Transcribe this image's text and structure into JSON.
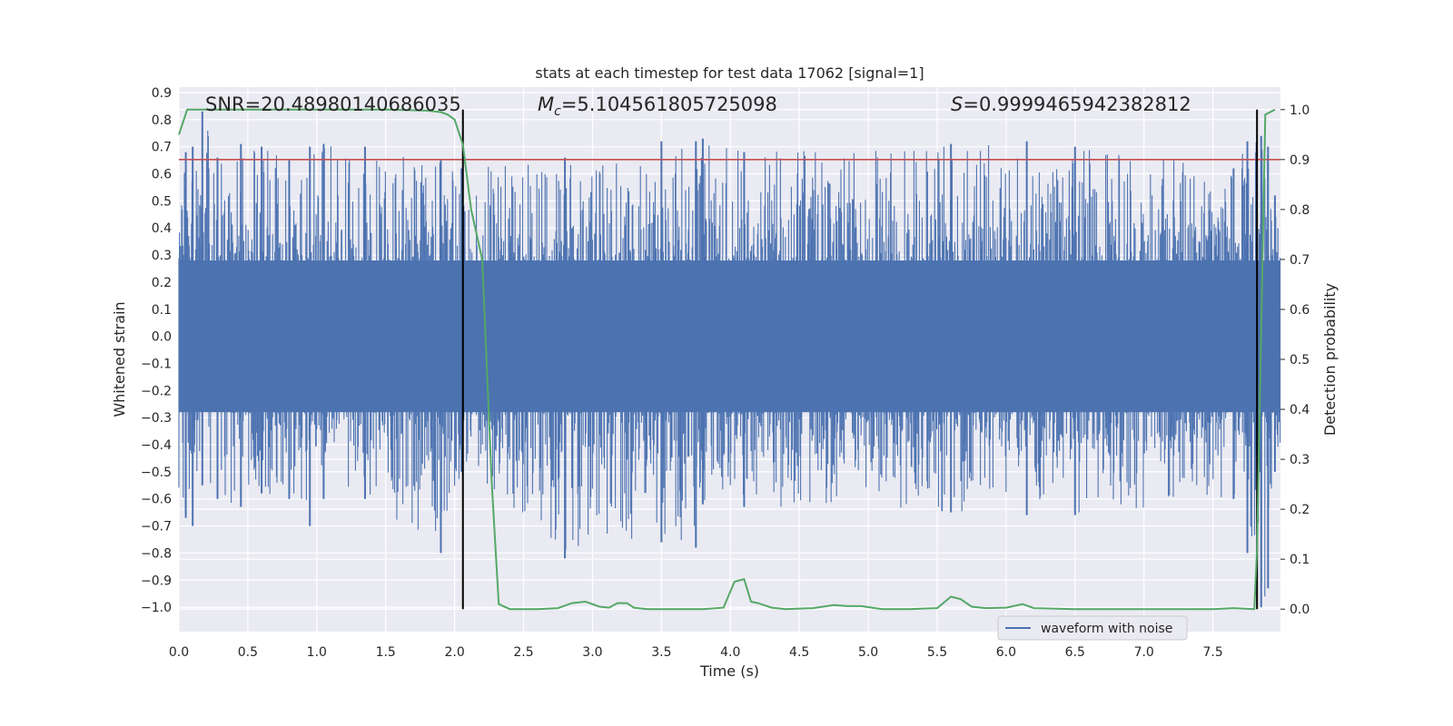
{
  "chart_data": {
    "type": "line",
    "title": "stats at each timestep for test data 17062 [signal=1]",
    "xlabel": "Time (s)",
    "ylabel": "Whitened strain",
    "y2label": "Detection probability",
    "xlim": [
      0.0,
      7.99
    ],
    "ylim": [
      -1.09,
      0.92
    ],
    "y2lim": [
      -0.045,
      1.045
    ],
    "xticks": [
      "0.0",
      "0.5",
      "1.0",
      "1.5",
      "2.0",
      "2.5",
      "3.0",
      "3.5",
      "4.0",
      "4.5",
      "5.0",
      "5.5",
      "6.0",
      "6.5",
      "7.0",
      "7.5"
    ],
    "yticks": [
      "0.9",
      "0.8",
      "0.7",
      "0.6",
      "0.5",
      "0.4",
      "0.3",
      "0.2",
      "0.1",
      "0.0",
      "−0.1",
      "−0.2",
      "−0.3",
      "−0.4",
      "−0.5",
      "−0.6",
      "−0.7",
      "−0.8",
      "−0.9",
      "−1.0"
    ],
    "y2ticks": [
      "1.0",
      "0.9",
      "0.8",
      "0.7",
      "0.6",
      "0.5",
      "0.4",
      "0.3",
      "0.2",
      "0.1",
      "0.0"
    ],
    "annotations": {
      "snr": "SNR=20.48980140686035",
      "mc_symbol": "M",
      "mc_sub": "c",
      "mc_value": "=5.104561805725098",
      "s_symbol": "S",
      "s_value": "=0.9999465942382812"
    },
    "threshold": 0.9,
    "vlines_x": [
      2.06,
      7.82
    ],
    "legend": [
      {
        "label": "waveform with noise",
        "color": "#4c72b0"
      }
    ],
    "legend_position": "lower-right",
    "series": [
      {
        "name": "waveform with noise",
        "color": "#4c72b0",
        "kind": "noise-envelope",
        "core_band": [
          -0.28,
          0.28
        ],
        "envelope_keypoints": {
          "x": [
            0.05,
            0.1,
            0.17,
            0.28,
            0.45,
            0.6,
            0.8,
            0.95,
            1.05,
            1.35,
            1.9,
            2.05,
            2.8,
            3.5,
            3.75,
            3.8,
            4.1,
            5.6,
            6.15,
            6.5,
            7.65,
            7.75,
            7.85,
            7.9,
            7.95
          ],
          "upper": [
            0.68,
            0.7,
            0.83,
            0.66,
            0.71,
            0.7,
            0.65,
            0.7,
            0.71,
            0.7,
            0.65,
            0.62,
            0.66,
            0.72,
            0.72,
            0.73,
            0.68,
            0.71,
            0.72,
            0.7,
            0.62,
            0.72,
            0.74,
            0.7,
            0.52
          ],
          "lower": [
            -0.67,
            -0.7,
            -0.55,
            -0.6,
            -0.63,
            -0.58,
            -0.6,
            -0.7,
            -0.6,
            -0.6,
            -0.8,
            -0.5,
            -0.82,
            -0.76,
            -0.78,
            -0.62,
            -0.63,
            -0.65,
            -0.66,
            -0.66,
            -0.6,
            -0.8,
            -1.0,
            -0.93,
            -0.5
          ]
        }
      },
      {
        "name": "detection probability",
        "color": "#55a868",
        "axis": "right",
        "x": [
          0.0,
          0.06,
          0.1,
          0.5,
          1.0,
          1.5,
          1.8,
          1.9,
          1.95,
          2.0,
          2.06,
          2.12,
          2.2,
          2.27,
          2.32,
          2.4,
          2.6,
          2.75,
          2.85,
          2.95,
          3.05,
          3.12,
          3.18,
          3.25,
          3.3,
          3.4,
          3.6,
          3.8,
          3.95,
          4.03,
          4.1,
          4.15,
          4.2,
          4.3,
          4.4,
          4.6,
          4.75,
          4.85,
          4.95,
          5.1,
          5.3,
          5.5,
          5.6,
          5.67,
          5.75,
          5.85,
          6.0,
          6.12,
          6.2,
          6.5,
          7.0,
          7.5,
          7.65,
          7.8,
          7.82,
          7.88,
          7.95
        ],
        "y": [
          0.95,
          1.0,
          1.0,
          1.0,
          1.0,
          1.0,
          0.998,
          0.995,
          0.99,
          0.98,
          0.93,
          0.8,
          0.7,
          0.25,
          0.01,
          0.0,
          0.0,
          0.002,
          0.012,
          0.015,
          0.005,
          0.003,
          0.012,
          0.012,
          0.003,
          0.0,
          0.0,
          0.0,
          0.003,
          0.055,
          0.06,
          0.015,
          0.012,
          0.003,
          0.0,
          0.002,
          0.008,
          0.006,
          0.006,
          0.0,
          0.0,
          0.002,
          0.025,
          0.02,
          0.005,
          0.002,
          0.003,
          0.01,
          0.002,
          0.0,
          0.0,
          0.0,
          0.002,
          0.0,
          0.12,
          0.99,
          1.0
        ]
      },
      {
        "name": "threshold",
        "color": "#c44e52",
        "axis": "right",
        "kind": "hline",
        "y": 0.9
      }
    ]
  }
}
